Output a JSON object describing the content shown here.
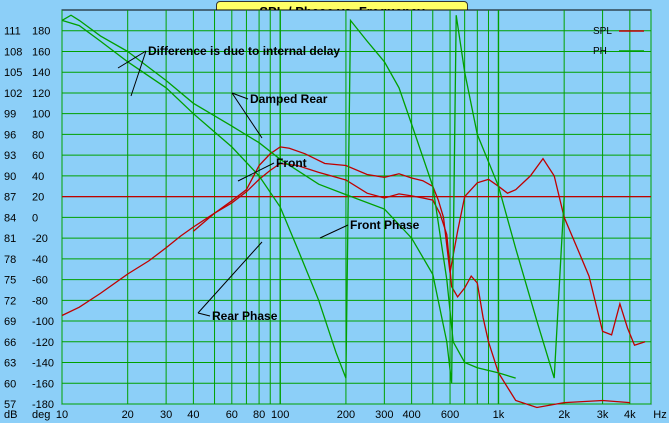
{
  "chart_data": {
    "type": "line",
    "title": "SPL / Phase vs. Frequency",
    "x_axis": {
      "scale": "log",
      "unit": "Hz",
      "range": [
        10,
        5000
      ],
      "tick_labels": [
        "10",
        "20",
        "30",
        "40",
        "60",
        "80",
        "100",
        "200",
        "300",
        "400",
        "600",
        "1k",
        "2k",
        "3k",
        "4k"
      ]
    },
    "y_axis_left": {
      "unit": "dB",
      "range": [
        57,
        114
      ],
      "tick_labels": [
        "111",
        "108",
        "105",
        "102",
        "99",
        "96",
        "93",
        "90",
        "87",
        "84",
        "81",
        "78",
        "75",
        "72",
        "69",
        "66",
        "63",
        "60",
        "57"
      ]
    },
    "y_axis_right": {
      "unit": "deg",
      "range": [
        -200,
        180
      ],
      "tick_labels": [
        "180",
        "160",
        "140",
        "120",
        "100",
        "80",
        "60",
        "40",
        "20",
        "0",
        "-20",
        "-40",
        "-60",
        "-80",
        "-100",
        "-120",
        "-140",
        "-160",
        "-180"
      ]
    },
    "x_unit_label": "Hz",
    "y_unit_labels": [
      "dB",
      "deg"
    ],
    "legend": {
      "placement": "top-right",
      "entries": [
        "SPL",
        "PH"
      ]
    },
    "grid": true,
    "colors": {
      "background": "#8ccff8",
      "grid": "#00a000",
      "spl": "#c00000",
      "phase": "#00a000",
      "zero_line": "#c00000"
    },
    "annotations": [
      "Difference is due to internal delay",
      "Damped Rear",
      "Front",
      "Front Phase",
      "Rear Phase"
    ],
    "series": [
      {
        "name": "SPL",
        "axis": "dB",
        "label": "Front",
        "points": [
          [
            10,
            69.8
          ],
          [
            12,
            71.0
          ],
          [
            15,
            73.0
          ],
          [
            20,
            75.8
          ],
          [
            25,
            77.7
          ],
          [
            30,
            79.6
          ],
          [
            35,
            81.3
          ],
          [
            40,
            82.6
          ],
          [
            50,
            84.6
          ],
          [
            60,
            86.1
          ],
          [
            70,
            87.7
          ],
          [
            80,
            89.5
          ],
          [
            90,
            90.8
          ],
          [
            100,
            91.8
          ],
          [
            120,
            91.5
          ],
          [
            150,
            90.5
          ],
          [
            200,
            89.4
          ],
          [
            250,
            87.5
          ],
          [
            300,
            86.8
          ],
          [
            350,
            87.4
          ],
          [
            400,
            87.1
          ],
          [
            450,
            86.8
          ],
          [
            500,
            86.5
          ],
          [
            540,
            84.5
          ],
          [
            580,
            81.5
          ],
          [
            610,
            74.0
          ],
          [
            650,
            72.5
          ],
          [
            700,
            73.8
          ],
          [
            750,
            75.5
          ],
          [
            800,
            74.5
          ],
          [
            850,
            69.5
          ],
          [
            900,
            66.0
          ],
          [
            1000,
            61.5
          ],
          [
            1200,
            57.5
          ],
          [
            1500,
            56.5
          ],
          [
            2000,
            57.2
          ],
          [
            3000,
            57.5
          ],
          [
            4000,
            57.2
          ]
        ]
      },
      {
        "name": "SPL",
        "axis": "dB",
        "label": "Damped Rear",
        "points": [
          [
            40,
            82.0
          ],
          [
            50,
            84.6
          ],
          [
            60,
            86.4
          ],
          [
            70,
            88.0
          ],
          [
            80,
            91.5
          ],
          [
            90,
            93.2
          ],
          [
            100,
            94.2
          ],
          [
            110,
            94.0
          ],
          [
            130,
            93.2
          ],
          [
            160,
            91.8
          ],
          [
            200,
            91.5
          ],
          [
            250,
            90.2
          ],
          [
            300,
            89.8
          ],
          [
            350,
            90.3
          ],
          [
            400,
            89.7
          ],
          [
            450,
            89.3
          ],
          [
            500,
            88.5
          ],
          [
            530,
            86.5
          ],
          [
            560,
            84.0
          ],
          [
            600,
            76.0
          ],
          [
            650,
            82.0
          ],
          [
            700,
            87.0
          ],
          [
            800,
            89.0
          ],
          [
            900,
            89.5
          ],
          [
            1000,
            88.5
          ],
          [
            1100,
            87.5
          ],
          [
            1200,
            88.0
          ],
          [
            1400,
            90.0
          ],
          [
            1600,
            92.5
          ],
          [
            1800,
            90.0
          ],
          [
            2000,
            84.0
          ],
          [
            2300,
            79.5
          ],
          [
            2600,
            75.5
          ],
          [
            3000,
            67.5
          ],
          [
            3300,
            67.0
          ],
          [
            3600,
            71.5
          ],
          [
            3900,
            68.0
          ],
          [
            4200,
            65.5
          ],
          [
            4700,
            66.0
          ]
        ]
      },
      {
        "name": "PH",
        "axis": "deg",
        "label": "Front Phase",
        "points": [
          [
            10,
            170
          ],
          [
            11,
            175
          ],
          [
            12,
            170
          ],
          [
            15,
            155
          ],
          [
            20,
            140
          ],
          [
            30,
            112
          ],
          [
            40,
            90
          ],
          [
            60,
            68
          ],
          [
            80,
            52
          ],
          [
            100,
            36
          ],
          [
            150,
            12
          ],
          [
            200,
            2
          ],
          [
            300,
            -12
          ],
          [
            400,
            -40
          ],
          [
            500,
            -75
          ],
          [
            580,
            -140
          ],
          [
            610,
            -180
          ],
          [
            640,
            175
          ],
          [
            700,
            120
          ],
          [
            800,
            60
          ],
          [
            1000,
            10
          ],
          [
            1200,
            -50
          ],
          [
            1500,
            -120
          ],
          [
            1800,
            -175
          ],
          [
            2000,
            0
          ]
        ]
      },
      {
        "name": "PH",
        "axis": "deg",
        "label": "Rear Phase",
        "points": [
          [
            10,
            170
          ],
          [
            12,
            165
          ],
          [
            15,
            150
          ],
          [
            20,
            130
          ],
          [
            30,
            105
          ],
          [
            40,
            80
          ],
          [
            60,
            48
          ],
          [
            80,
            20
          ],
          [
            100,
            -10
          ],
          [
            120,
            -50
          ],
          [
            150,
            -100
          ],
          [
            180,
            -150
          ],
          [
            200,
            -175
          ],
          [
            210,
            170
          ],
          [
            250,
            150
          ],
          [
            300,
            130
          ],
          [
            350,
            105
          ],
          [
            400,
            70
          ],
          [
            500,
            10
          ],
          [
            580,
            -80
          ],
          [
            620,
            -140
          ],
          [
            700,
            -160
          ],
          [
            800,
            -165
          ],
          [
            1000,
            -170
          ],
          [
            1200,
            -175
          ]
        ]
      }
    ]
  }
}
